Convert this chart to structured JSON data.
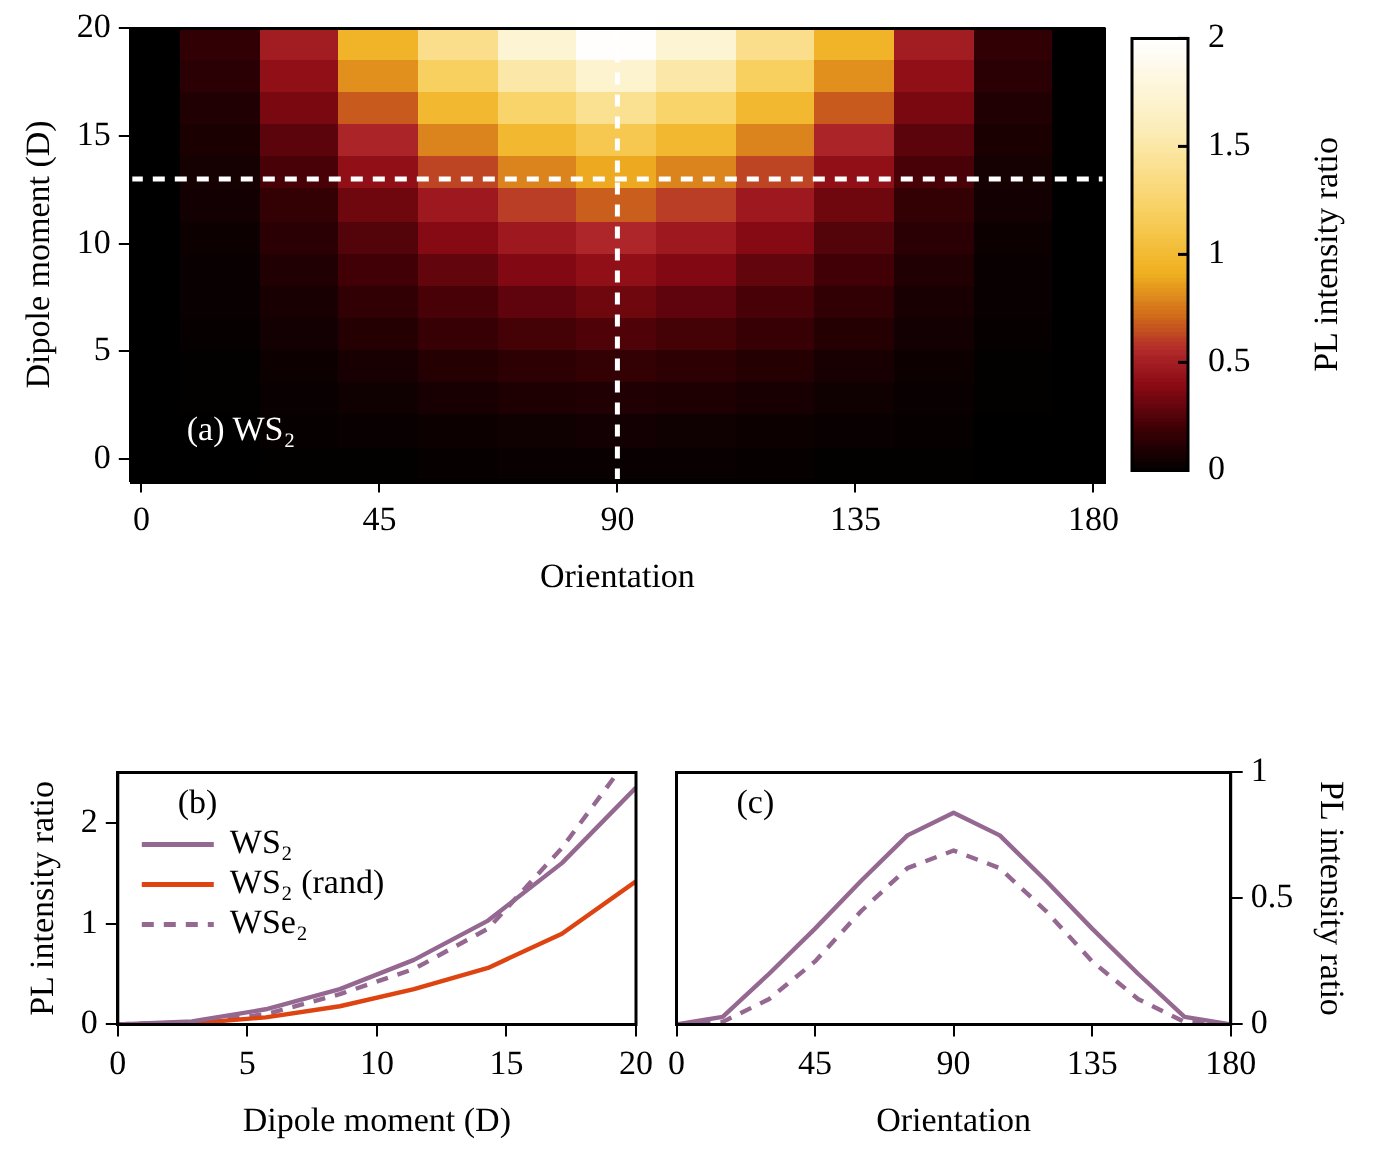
{
  "chart_data": [
    {
      "type": "heatmap",
      "xlabel": "Orientation",
      "ylabel": "Dipole moment (D)",
      "clabel": "PL intensity ratio",
      "x": [
        0,
        15,
        30,
        45,
        60,
        75,
        90,
        105,
        120,
        135,
        150,
        165,
        180
      ],
      "y": [
        19.25,
        17.75,
        16.25,
        14.75,
        13.25,
        11.75,
        10.25,
        8.75,
        7.25,
        5.75,
        4.25,
        2.75,
        1.25,
        -0.25
      ],
      "xlim": [
        -2,
        182
      ],
      "xticks": [
        0,
        45,
        90,
        135,
        180
      ],
      "ylim": [
        -1,
        20
      ],
      "yticks": [
        0,
        5,
        10,
        15,
        20
      ],
      "clim": [
        0,
        2
      ],
      "cticks": [
        0,
        0.5,
        1,
        1.5,
        2
      ],
      "cells": [
        [
          0,
          0.16,
          0.5,
          0.95,
          1.39,
          1.74,
          1.98,
          1.74,
          1.39,
          0.95,
          0.5,
          0.16,
          0
        ],
        [
          0,
          0.14,
          0.43,
          0.83,
          1.2,
          1.51,
          1.72,
          1.51,
          1.2,
          0.83,
          0.43,
          0.14,
          0
        ],
        [
          0,
          0.11,
          0.36,
          0.68,
          0.99,
          1.25,
          1.42,
          1.25,
          0.99,
          0.68,
          0.36,
          0.11,
          0
        ],
        [
          0,
          0.09,
          0.28,
          0.54,
          0.79,
          0.99,
          1.13,
          0.99,
          0.79,
          0.54,
          0.28,
          0.09,
          0
        ],
        [
          0,
          0.07,
          0.23,
          0.43,
          0.63,
          0.79,
          0.9,
          0.79,
          0.63,
          0.43,
          0.23,
          0.07,
          0
        ],
        [
          0,
          0.06,
          0.17,
          0.33,
          0.48,
          0.61,
          0.69,
          0.61,
          0.48,
          0.33,
          0.17,
          0.06,
          0
        ],
        [
          0,
          0.04,
          0.14,
          0.26,
          0.39,
          0.48,
          0.55,
          0.48,
          0.39,
          0.26,
          0.14,
          0.04,
          0
        ],
        [
          0,
          0.03,
          0.11,
          0.21,
          0.3,
          0.38,
          0.43,
          0.38,
          0.3,
          0.21,
          0.11,
          0.03,
          0
        ],
        [
          0,
          0.03,
          0.08,
          0.16,
          0.23,
          0.29,
          0.33,
          0.29,
          0.23,
          0.16,
          0.08,
          0.03,
          0
        ],
        [
          0,
          0.02,
          0.06,
          0.12,
          0.18,
          0.22,
          0.25,
          0.22,
          0.18,
          0.12,
          0.06,
          0.02,
          0
        ],
        [
          0,
          0.01,
          0.04,
          0.08,
          0.12,
          0.15,
          0.17,
          0.15,
          0.12,
          0.08,
          0.04,
          0.01,
          0
        ],
        [
          0,
          0.01,
          0.03,
          0.05,
          0.08,
          0.1,
          0.11,
          0.1,
          0.08,
          0.05,
          0.03,
          0.01,
          0
        ],
        [
          0,
          0,
          0.02,
          0.03,
          0.04,
          0.05,
          0.06,
          0.05,
          0.04,
          0.03,
          0.02,
          0,
          0
        ],
        [
          0,
          0,
          0.01,
          0.01,
          0.02,
          0.03,
          0.03,
          0.03,
          0.02,
          0.01,
          0.01,
          0,
          0
        ]
      ],
      "ref_lines": [
        {
          "axis": "y",
          "value": 13,
          "color": "#ffffff",
          "line_style": "dashed"
        },
        {
          "axis": "x",
          "value": 90,
          "color": "#ffffff",
          "line_style": "dashed"
        }
      ],
      "annotations": [
        "(a) WS₂"
      ],
      "grid": false
    },
    {
      "type": "line",
      "xlabel": "Dipole moment (D)",
      "ylabel": "PL intensity ratio",
      "xlim": [
        0,
        20
      ],
      "xticks": [
        0,
        5,
        10,
        15,
        20
      ],
      "ylim": [
        0,
        2.5
      ],
      "yticks": [
        0,
        1,
        2
      ],
      "series": [
        {
          "name": "WS₂",
          "color": "#946891",
          "line_style": "solid",
          "x": [
            0,
            2.86,
            5.71,
            8.57,
            11.43,
            14.29,
            17.14,
            20
          ],
          "values": [
            0,
            0.03,
            0.15,
            0.35,
            0.64,
            1.03,
            1.6,
            2.35
          ]
        },
        {
          "name": "WS₂ (rand)",
          "color": "#dd4411",
          "line_style": "solid",
          "x": [
            0,
            2.86,
            5.71,
            8.57,
            11.43,
            14.29,
            17.14,
            20
          ],
          "values": [
            0,
            0.01,
            0.07,
            0.18,
            0.35,
            0.56,
            0.9,
            1.42
          ]
        },
        {
          "name": "WSe₂",
          "color": "#946891",
          "line_style": "dashed",
          "x": [
            0,
            2.86,
            5.71,
            8.57,
            11.43,
            14.29,
            17.14,
            19.3
          ],
          "values": [
            0,
            0.02,
            0.1,
            0.3,
            0.55,
            0.95,
            1.75,
            2.5
          ]
        }
      ],
      "annotations": [
        "(b)"
      ],
      "legend": "top left",
      "marker": "none",
      "grid": false
    },
    {
      "type": "line",
      "xlabel": "Orientation",
      "ylabel": "PL intensity ratio",
      "x": [
        0,
        15,
        30,
        45,
        60,
        75,
        90,
        105,
        120,
        135,
        150,
        165,
        180
      ],
      "xlim": [
        0,
        180
      ],
      "xticks": [
        0,
        45,
        90,
        135,
        180
      ],
      "ylim": [
        0,
        1
      ],
      "yticks": [
        0,
        0.5,
        1
      ],
      "series": [
        {
          "color": "#946891",
          "line_style": "solid",
          "values": [
            0,
            0.03,
            0.2,
            0.38,
            0.57,
            0.75,
            0.84,
            0.75,
            0.57,
            0.38,
            0.2,
            0.03,
            0
          ]
        },
        {
          "color": "#946891",
          "line_style": "dashed",
          "values": [
            0,
            0.01,
            0.1,
            0.25,
            0.45,
            0.62,
            0.69,
            0.62,
            0.45,
            0.25,
            0.1,
            0.01,
            0
          ]
        }
      ],
      "annotations": [
        "(c)"
      ],
      "marker": "none",
      "grid": false
    }
  ]
}
